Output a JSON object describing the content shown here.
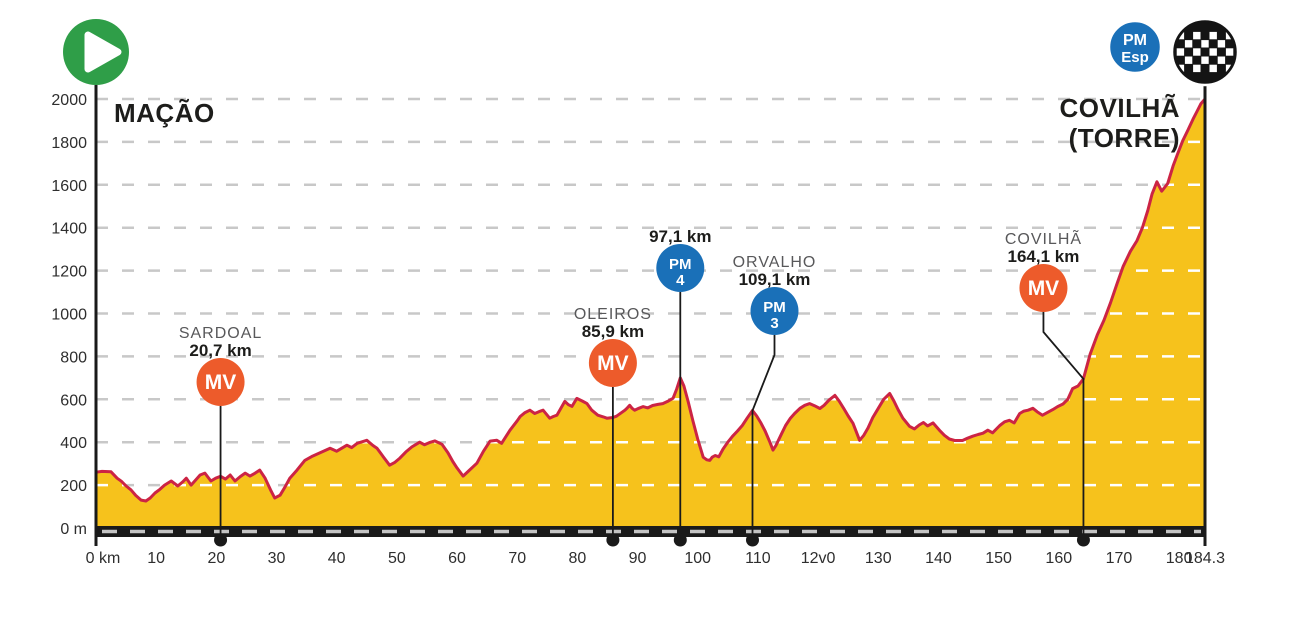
{
  "header": {
    "start_label": "MAÇÃO",
    "finish_label_line1": "COVILHÃ",
    "finish_label_line2": "(TORRE)",
    "finish_pm_badge": {
      "line1": "PM",
      "line2": "Esp"
    }
  },
  "colors": {
    "profile_fill": "#F6C21C",
    "profile_line": "#CC2444",
    "mv_badge": "#ED5B2B",
    "pm_badge": "#1A70B8",
    "play_button": "#2F9E48",
    "axis": "#1a1a1a",
    "grid": "#C8C8C8",
    "grid_on_fill": "#FFFFFF",
    "baseline_dash": "#C4C4C4",
    "connector": "#1a1a1a"
  },
  "chart_data": {
    "type": "area",
    "xlabel": "km",
    "ylabel": "m",
    "xlim": [
      0,
      184.3
    ],
    "ylim": [
      0,
      2000
    ],
    "grid": "dashed horizontal every 200 m",
    "legend_position": "none",
    "x_axis": {
      "unit": "km",
      "ticks": [
        {
          "value": 0,
          "label": "0 km"
        },
        {
          "value": 10,
          "label": "10"
        },
        {
          "value": 20,
          "label": "20"
        },
        {
          "value": 30,
          "label": "30"
        },
        {
          "value": 40,
          "label": "40"
        },
        {
          "value": 50,
          "label": "50"
        },
        {
          "value": 60,
          "label": "60"
        },
        {
          "value": 70,
          "label": "70"
        },
        {
          "value": 80,
          "label": "80"
        },
        {
          "value": 90,
          "label": "90"
        },
        {
          "value": 100,
          "label": "100"
        },
        {
          "value": 110,
          "label": "110"
        },
        {
          "value": 120,
          "label": "12v0"
        },
        {
          "value": 130,
          "label": "130"
        },
        {
          "value": 140,
          "label": "140"
        },
        {
          "value": 150,
          "label": "150"
        },
        {
          "value": 160,
          "label": "160"
        },
        {
          "value": 170,
          "label": "170"
        },
        {
          "value": 180,
          "label": "180"
        },
        {
          "value": 184.3,
          "label": "184.3"
        }
      ]
    },
    "y_axis": {
      "unit": "m",
      "ticks": [
        {
          "value": 2000,
          "label": "2000"
        },
        {
          "value": 1800,
          "label": "1800"
        },
        {
          "value": 1600,
          "label": "1600"
        },
        {
          "value": 1400,
          "label": "1400"
        },
        {
          "value": 1200,
          "label": "1200"
        },
        {
          "value": 1000,
          "label": "1000"
        },
        {
          "value": 800,
          "label": "800"
        },
        {
          "value": 600,
          "label": "600"
        },
        {
          "value": 400,
          "label": "400"
        },
        {
          "value": 200,
          "label": "200"
        },
        {
          "value": 0,
          "label": "0 m"
        }
      ]
    },
    "markers": [
      {
        "name": "SARDOAL",
        "distance_label": "20,7 km",
        "km": 20.7,
        "badge": "MV"
      },
      {
        "name": "OLEIROS",
        "distance_label": "85,9 km",
        "km": 85.9,
        "badge": "MV"
      },
      {
        "name": "",
        "distance_label": "97,1 km",
        "km": 97.1,
        "badge": "PM",
        "badge_sub": "4"
      },
      {
        "name": "ORVALHO",
        "distance_label": "109,1 km",
        "km": 109.1,
        "badge": "PM",
        "badge_sub": "3"
      },
      {
        "name": "COVILHÃ",
        "distance_label": "164,1 km",
        "km": 164.1,
        "badge": "MV"
      }
    ],
    "profile_km_m": [
      [
        0,
        260
      ],
      [
        1,
        264
      ],
      [
        2.5,
        262
      ],
      [
        3.5,
        232
      ],
      [
        4.2,
        218
      ],
      [
        5,
        196
      ],
      [
        5.8,
        178
      ],
      [
        6.6,
        152
      ],
      [
        7.5,
        130
      ],
      [
        8.3,
        126
      ],
      [
        9,
        140
      ],
      [
        9.8,
        163
      ],
      [
        10.6,
        180
      ],
      [
        11.4,
        200
      ],
      [
        12.5,
        219
      ],
      [
        13.6,
        196
      ],
      [
        14.4,
        215
      ],
      [
        15,
        232
      ],
      [
        15.8,
        200
      ],
      [
        16.6,
        225
      ],
      [
        17.3,
        247
      ],
      [
        18.1,
        256
      ],
      [
        19.1,
        219
      ],
      [
        19.9,
        232
      ],
      [
        20.7,
        241
      ],
      [
        21.5,
        228
      ],
      [
        22.3,
        247
      ],
      [
        23.1,
        219
      ],
      [
        24,
        240
      ],
      [
        24.8,
        256
      ],
      [
        25.6,
        242
      ],
      [
        26.4,
        255
      ],
      [
        27.2,
        270
      ],
      [
        28.1,
        232
      ],
      [
        29,
        178
      ],
      [
        29.7,
        140
      ],
      [
        30.6,
        153
      ],
      [
        31.4,
        190
      ],
      [
        32.2,
        232
      ],
      [
        33.4,
        270
      ],
      [
        34.7,
        315
      ],
      [
        36,
        335
      ],
      [
        37.2,
        350
      ],
      [
        38.9,
        372
      ],
      [
        40,
        358
      ],
      [
        41.7,
        386
      ],
      [
        42.5,
        375
      ],
      [
        43.4,
        395
      ],
      [
        45,
        409
      ],
      [
        46,
        385
      ],
      [
        46.7,
        372
      ],
      [
        47.8,
        330
      ],
      [
        48.8,
        293
      ],
      [
        49.6,
        305
      ],
      [
        50.5,
        326
      ],
      [
        51.5,
        355
      ],
      [
        52.5,
        378
      ],
      [
        53.8,
        400
      ],
      [
        54.6,
        388
      ],
      [
        55.4,
        398
      ],
      [
        56.3,
        406
      ],
      [
        57.5,
        390
      ],
      [
        58.5,
        350
      ],
      [
        59.3,
        310
      ],
      [
        60,
        280
      ],
      [
        61,
        242
      ],
      [
        62,
        268
      ],
      [
        63.3,
        302
      ],
      [
        64.4,
        358
      ],
      [
        65.5,
        405
      ],
      [
        66.6,
        409
      ],
      [
        67.4,
        395
      ],
      [
        68.8,
        456
      ],
      [
        70,
        500
      ],
      [
        70.5,
        520
      ],
      [
        71.3,
        538
      ],
      [
        72.1,
        549
      ],
      [
        72.9,
        534
      ],
      [
        73.6,
        542
      ],
      [
        74.3,
        549
      ],
      [
        75.4,
        512
      ],
      [
        76,
        520
      ],
      [
        76.6,
        526
      ],
      [
        77.3,
        560
      ],
      [
        77.9,
        590
      ],
      [
        78.5,
        575
      ],
      [
        79.1,
        567
      ],
      [
        79.9,
        604
      ],
      [
        80.8,
        592
      ],
      [
        81.6,
        580
      ],
      [
        82.4,
        549
      ],
      [
        83.4,
        526
      ],
      [
        84.3,
        518
      ],
      [
        84.9,
        512
      ],
      [
        85.9,
        515
      ],
      [
        86.5,
        521
      ],
      [
        87.2,
        535
      ],
      [
        87.9,
        549
      ],
      [
        88.3,
        560
      ],
      [
        88.7,
        572
      ],
      [
        89.1,
        558
      ],
      [
        89.5,
        549
      ],
      [
        90.2,
        558
      ],
      [
        90.9,
        566
      ],
      [
        91.7,
        560
      ],
      [
        92.5,
        571
      ],
      [
        93.4,
        576
      ],
      [
        94.2,
        580
      ],
      [
        95,
        590
      ],
      [
        95.9,
        605
      ],
      [
        96.5,
        648
      ],
      [
        97.1,
        700
      ],
      [
        97.7,
        662
      ],
      [
        98.4,
        590
      ],
      [
        99.2,
        500
      ],
      [
        100,
        415
      ],
      [
        100.9,
        330
      ],
      [
        101.5,
        318
      ],
      [
        102,
        315
      ],
      [
        102.4,
        330
      ],
      [
        102.9,
        338
      ],
      [
        103.5,
        332
      ],
      [
        104.2,
        368
      ],
      [
        105,
        400
      ],
      [
        105.8,
        428
      ],
      [
        106.6,
        452
      ],
      [
        107.4,
        478
      ],
      [
        108.2,
        512
      ],
      [
        109.1,
        548
      ],
      [
        109.8,
        522
      ],
      [
        110.5,
        490
      ],
      [
        111.2,
        452
      ],
      [
        112,
        400
      ],
      [
        112.5,
        363
      ],
      [
        113,
        385
      ],
      [
        113.8,
        432
      ],
      [
        114.6,
        478
      ],
      [
        115.4,
        512
      ],
      [
        116.1,
        534
      ],
      [
        117,
        558
      ],
      [
        117.8,
        572
      ],
      [
        118.6,
        580
      ],
      [
        119.4,
        570
      ],
      [
        120.3,
        557
      ],
      [
        121,
        572
      ],
      [
        121.8,
        596
      ],
      [
        122.8,
        618
      ],
      [
        123.5,
        592
      ],
      [
        124.2,
        560
      ],
      [
        125,
        522
      ],
      [
        125.8,
        488
      ],
      [
        126.9,
        409
      ],
      [
        127.6,
        432
      ],
      [
        128.3,
        466
      ],
      [
        129.1,
        515
      ],
      [
        130,
        558
      ],
      [
        130.9,
        600
      ],
      [
        131.9,
        627
      ],
      [
        132.6,
        592
      ],
      [
        133.3,
        552
      ],
      [
        134.1,
        512
      ],
      [
        135.2,
        474
      ],
      [
        136,
        462
      ],
      [
        136.8,
        480
      ],
      [
        137.5,
        492
      ],
      [
        138.2,
        476
      ],
      [
        139.1,
        490
      ],
      [
        140.2,
        455
      ],
      [
        141,
        432
      ],
      [
        141.8,
        415
      ],
      [
        142.7,
        408
      ],
      [
        144,
        408
      ],
      [
        144.8,
        418
      ],
      [
        145.7,
        428
      ],
      [
        146.6,
        436
      ],
      [
        147.4,
        442
      ],
      [
        148.2,
        456
      ],
      [
        149,
        444
      ],
      [
        150.2,
        478
      ],
      [
        151,
        495
      ],
      [
        151.8,
        502
      ],
      [
        152.6,
        490
      ],
      [
        153.5,
        534
      ],
      [
        154.2,
        545
      ],
      [
        154.9,
        549
      ],
      [
        155.7,
        558
      ],
      [
        156.4,
        542
      ],
      [
        157.3,
        526
      ],
      [
        158.1,
        538
      ],
      [
        159,
        552
      ],
      [
        159.8,
        566
      ],
      [
        160.7,
        578
      ],
      [
        161.5,
        600
      ],
      [
        162.3,
        650
      ],
      [
        163.2,
        662
      ],
      [
        164.1,
        695
      ],
      [
        165.2,
        810
      ],
      [
        166.4,
        900
      ],
      [
        167.5,
        968
      ],
      [
        168.6,
        1050
      ],
      [
        169.7,
        1140
      ],
      [
        170.7,
        1220
      ],
      [
        171.9,
        1290
      ],
      [
        173,
        1340
      ],
      [
        173.9,
        1400
      ],
      [
        174.8,
        1480
      ],
      [
        175.5,
        1556
      ],
      [
        176.3,
        1614
      ],
      [
        177.1,
        1570
      ],
      [
        178.1,
        1606
      ],
      [
        179,
        1688
      ],
      [
        179.8,
        1748
      ],
      [
        180.6,
        1805
      ],
      [
        181.5,
        1858
      ],
      [
        182.3,
        1906
      ],
      [
        183,
        1944
      ],
      [
        183.6,
        1977
      ],
      [
        184.3,
        2000
      ]
    ]
  }
}
